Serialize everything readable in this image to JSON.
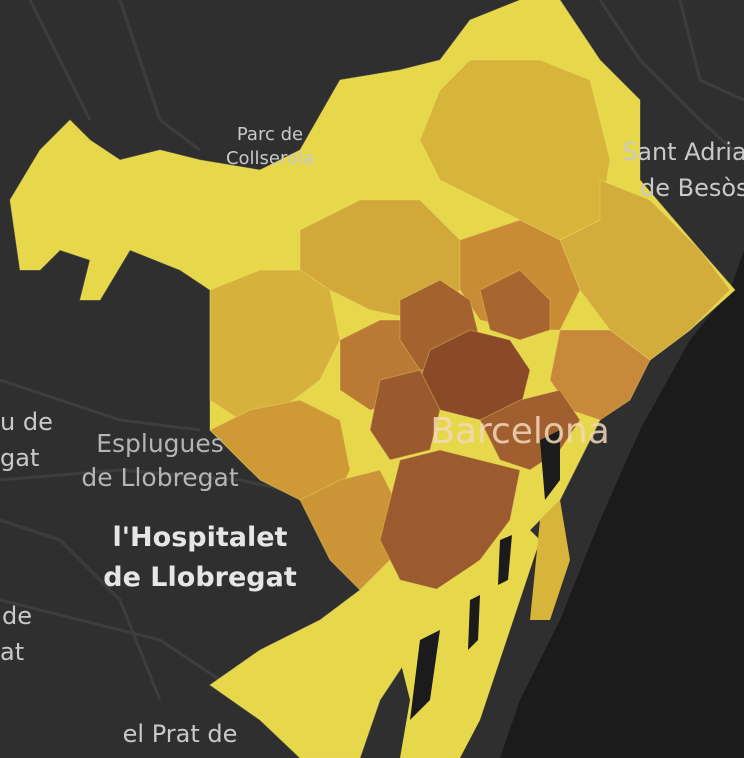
{
  "map": {
    "colors": {
      "land": "#2f2f2f",
      "sea": "#1b1b1b",
      "road": "#3c3c3c",
      "low": "#e6d84a",
      "mid_low": "#d7b53a",
      "mid": "#cf9a35",
      "mid_high": "#bb7a33",
      "high": "#9a5a2e",
      "top": "#8a4a28"
    },
    "labels": {
      "parc_line1": "Parc de",
      "parc_line2": "Collserola",
      "sant_adria_line1": "Sant Adria",
      "sant_adria_line2": "de Besòs",
      "sant_just_line1": "u de",
      "sant_just_line2": "gat",
      "esplugues_line1": "Esplugues",
      "esplugues_line2": "de Llobregat",
      "hospitalet_line1": "l'Hospitalet",
      "hospitalet_line2": "de Llobregat",
      "cornella_line1": "de",
      "cornella_line2": "at",
      "prat_line1": "el Prat de",
      "city": "Barcelona"
    }
  }
}
